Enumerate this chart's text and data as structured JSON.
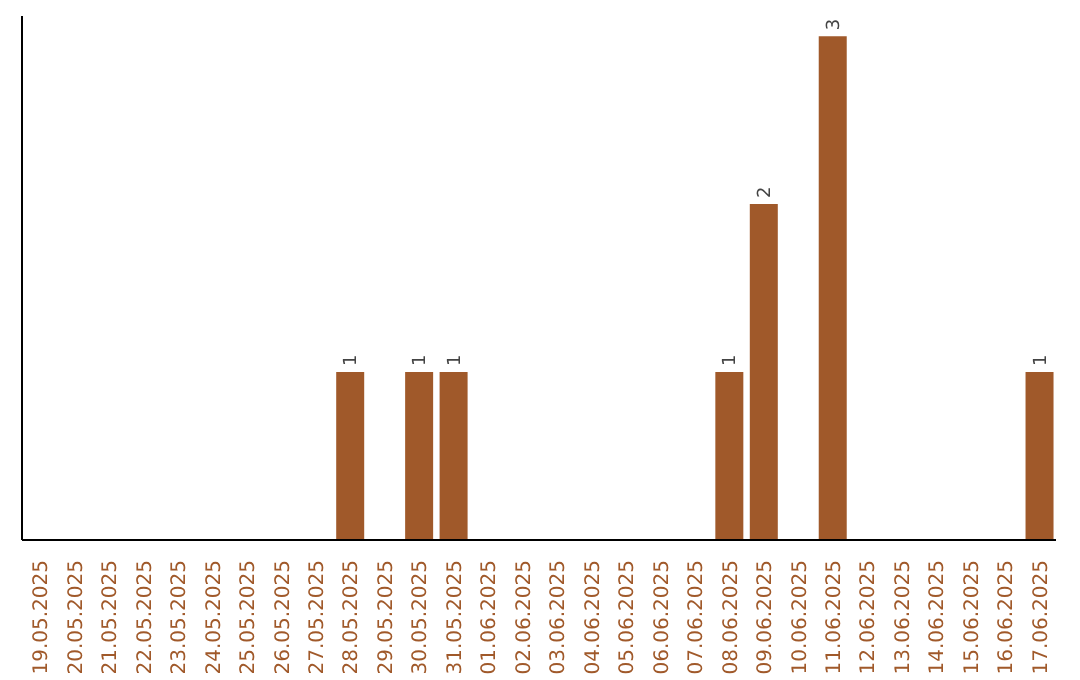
{
  "chart_data": {
    "type": "bar",
    "categories": [
      "19.05.2025",
      "20.05.2025",
      "21.05.2025",
      "22.05.2025",
      "23.05.2025",
      "24.05.2025",
      "25.05.2025",
      "26.05.2025",
      "27.05.2025",
      "28.05.2025",
      "29.05.2025",
      "30.05.2025",
      "31.05.2025",
      "01.06.2025",
      "02.06.2025",
      "03.06.2025",
      "04.06.2025",
      "05.06.2025",
      "06.06.2025",
      "07.06.2025",
      "08.06.2025",
      "09.06.2025",
      "10.06.2025",
      "11.06.2025",
      "12.06.2025",
      "13.06.2025",
      "14.06.2025",
      "15.06.2025",
      "16.06.2025",
      "17.06.2025"
    ],
    "values": [
      0,
      0,
      0,
      0,
      0,
      0,
      0,
      0,
      0,
      1,
      0,
      1,
      1,
      0,
      0,
      0,
      0,
      0,
      0,
      0,
      1,
      2,
      0,
      3,
      0,
      0,
      0,
      0,
      0,
      1
    ],
    "value_labels": [
      null,
      null,
      null,
      null,
      null,
      null,
      null,
      null,
      null,
      "1",
      null,
      "1",
      "1",
      null,
      null,
      null,
      null,
      null,
      null,
      null,
      "1",
      "2",
      null,
      "3",
      null,
      null,
      null,
      null,
      null,
      "1"
    ],
    "color": "#a0592a",
    "grid": false,
    "legend": false,
    "tick_labels": "x"
  }
}
